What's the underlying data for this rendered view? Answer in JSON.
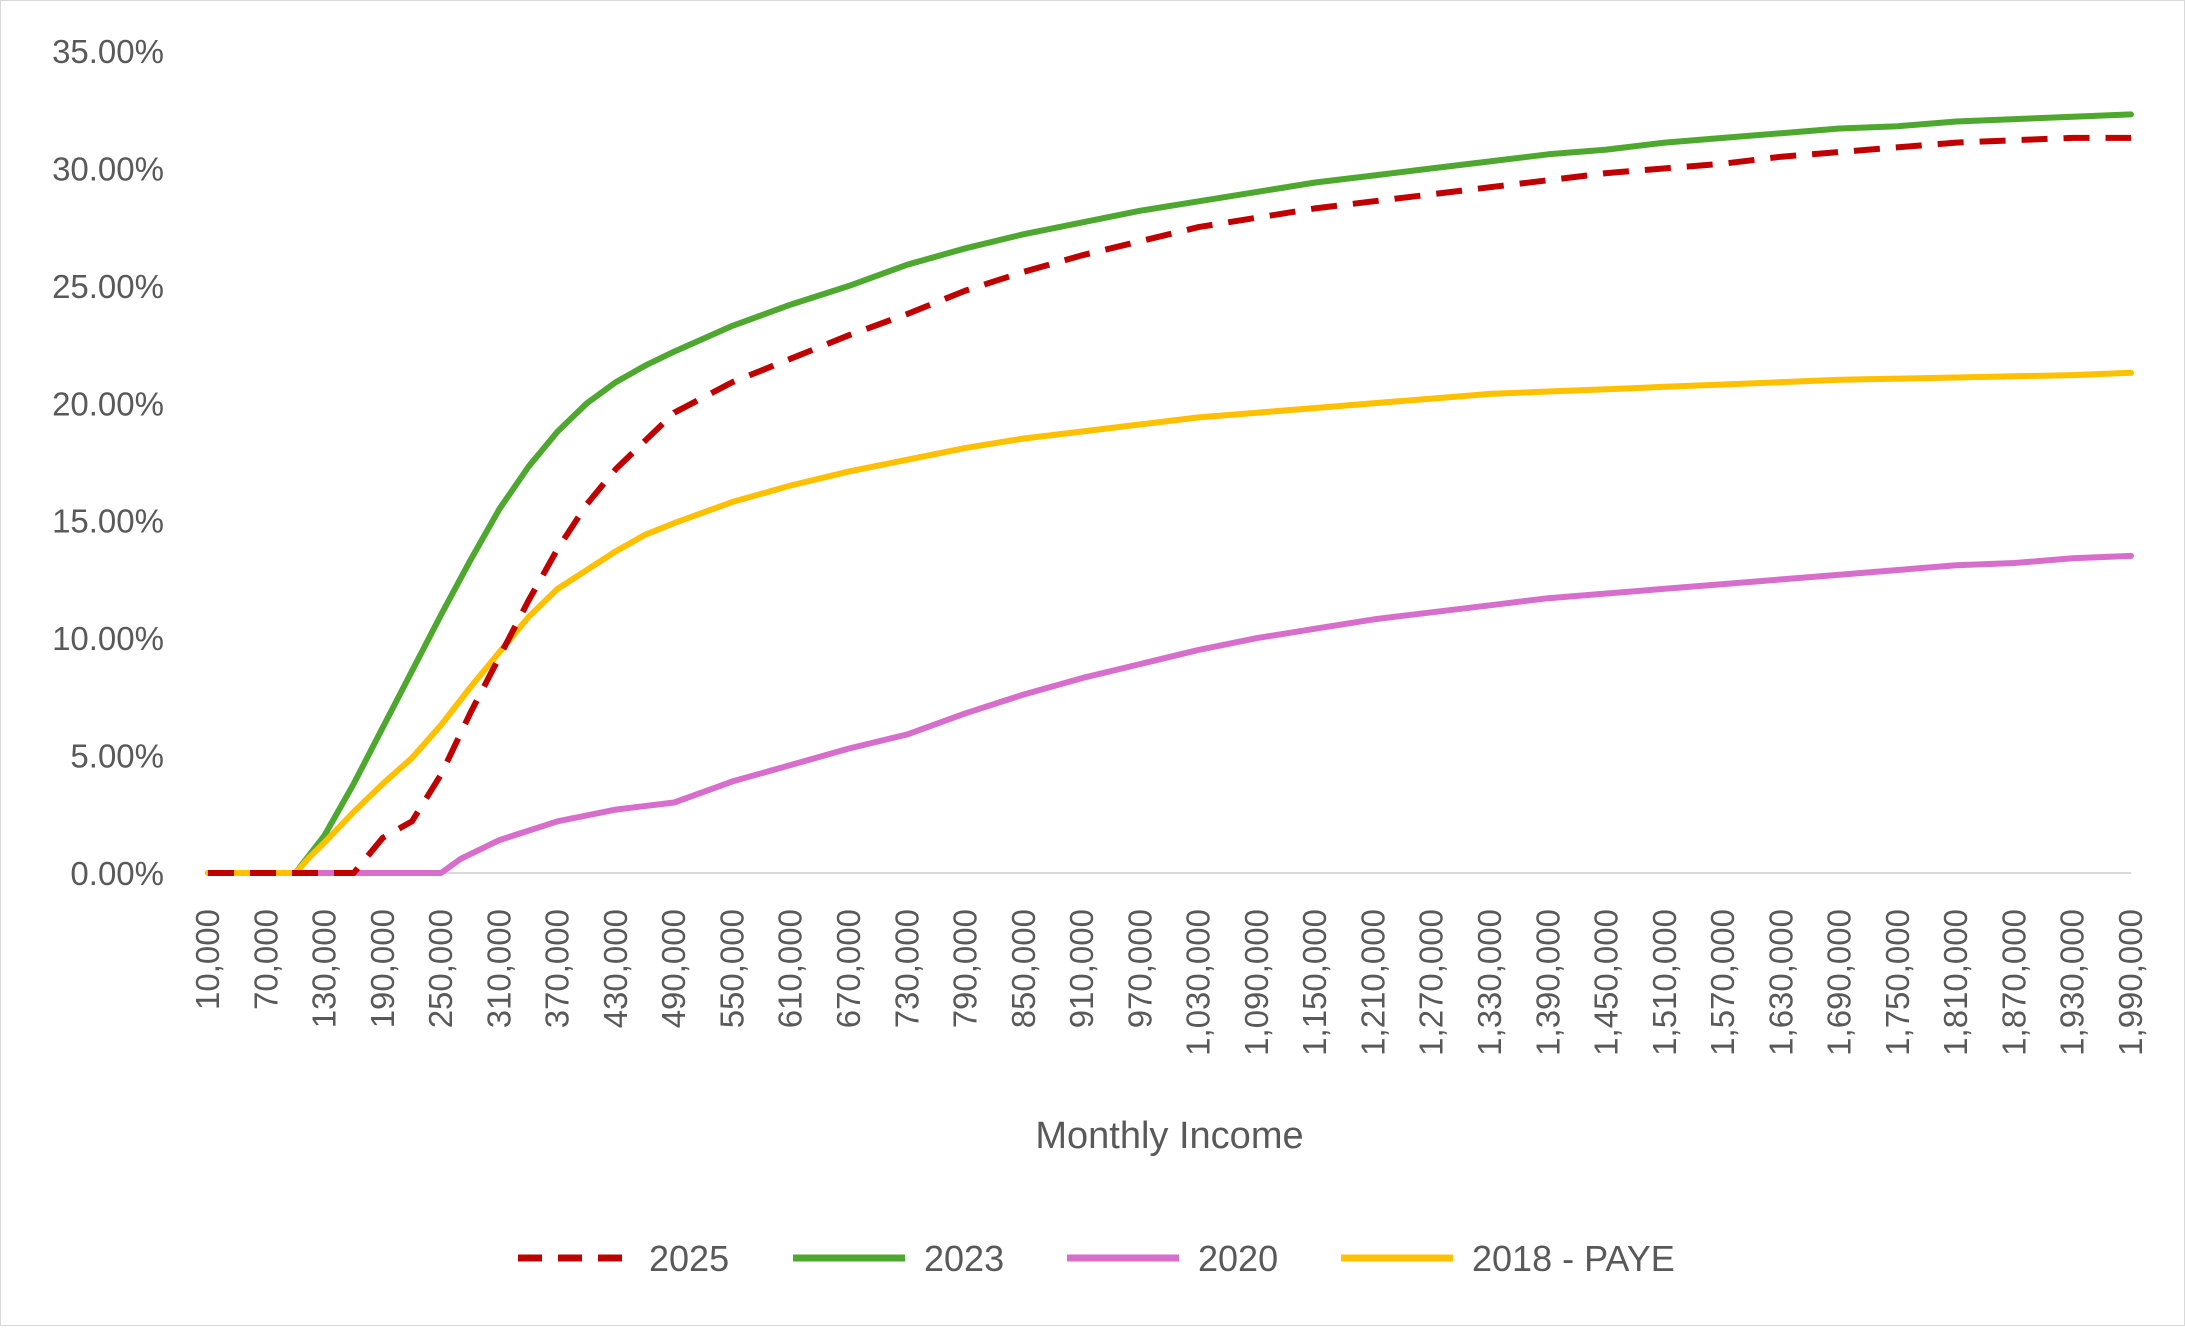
{
  "chart_data": {
    "type": "line",
    "title": "",
    "xlabel": "Monthly Income",
    "ylabel": "",
    "ylim": [
      0,
      35
    ],
    "yticks": [
      "0.00%",
      "5.00%",
      "10.00%",
      "15.00%",
      "20.00%",
      "25.00%",
      "30.00%",
      "35.00%"
    ],
    "ytick_values": [
      0,
      5,
      10,
      15,
      20,
      25,
      30,
      35
    ],
    "xlim": [
      10000,
      1990000
    ],
    "xticks": [
      "10,000",
      "70,000",
      "130,000",
      "190,000",
      "250,000",
      "310,000",
      "370,000",
      "430,000",
      "490,000",
      "550,000",
      "610,000",
      "670,000",
      "730,000",
      "790,000",
      "850,000",
      "910,000",
      "970,000",
      "1,030,000",
      "1,090,000",
      "1,150,000",
      "1,210,000",
      "1,270,000",
      "1,330,000",
      "1,390,000",
      "1,450,000",
      "1,510,000",
      "1,570,000",
      "1,630,000",
      "1,690,000",
      "1,750,000",
      "1,810,000",
      "1,870,000",
      "1,930,000",
      "1,990,000"
    ],
    "xtick_values": [
      10000,
      70000,
      130000,
      190000,
      250000,
      310000,
      370000,
      430000,
      490000,
      550000,
      610000,
      670000,
      730000,
      790000,
      850000,
      910000,
      970000,
      1030000,
      1090000,
      1150000,
      1210000,
      1270000,
      1330000,
      1390000,
      1450000,
      1510000,
      1570000,
      1630000,
      1690000,
      1750000,
      1810000,
      1870000,
      1930000,
      1990000
    ],
    "grid": false,
    "legend_position": "bottom",
    "series": [
      {
        "name": "2025",
        "color": "#C00000",
        "dash": true,
        "x": [
          10000,
          70000,
          100000,
          130000,
          160000,
          190000,
          220000,
          250000,
          280000,
          310000,
          340000,
          370000,
          400000,
          430000,
          460000,
          490000,
          550000,
          610000,
          670000,
          730000,
          790000,
          850000,
          910000,
          970000,
          1030000,
          1090000,
          1150000,
          1210000,
          1270000,
          1330000,
          1390000,
          1450000,
          1510000,
          1570000,
          1630000,
          1690000,
          1750000,
          1810000,
          1870000,
          1930000,
          1990000
        ],
        "y": [
          0,
          0,
          0,
          0,
          0,
          1.5,
          2.2,
          4.2,
          6.8,
          9.2,
          11.6,
          13.8,
          15.7,
          17.2,
          18.4,
          19.6,
          20.9,
          21.9,
          22.9,
          23.8,
          24.8,
          25.6,
          26.3,
          26.9,
          27.5,
          27.9,
          28.3,
          28.6,
          28.9,
          29.2,
          29.5,
          29.8,
          30.0,
          30.2,
          30.5,
          30.7,
          30.9,
          31.1,
          31.2,
          31.3,
          31.3
        ]
      },
      {
        "name": "2023",
        "color": "#4EA72E",
        "dash": false,
        "x": [
          10000,
          70000,
          100000,
          115000,
          130000,
          160000,
          190000,
          220000,
          250000,
          280000,
          310000,
          340000,
          370000,
          400000,
          430000,
          460000,
          490000,
          550000,
          610000,
          670000,
          730000,
          790000,
          850000,
          910000,
          970000,
          1030000,
          1090000,
          1150000,
          1210000,
          1270000,
          1330000,
          1390000,
          1450000,
          1510000,
          1570000,
          1630000,
          1690000,
          1750000,
          1810000,
          1870000,
          1930000,
          1990000
        ],
        "y": [
          0,
          0,
          0,
          0.8,
          1.6,
          3.8,
          6.2,
          8.6,
          11.0,
          13.3,
          15.5,
          17.3,
          18.8,
          20.0,
          20.9,
          21.6,
          22.2,
          23.3,
          24.2,
          25.0,
          25.9,
          26.6,
          27.2,
          27.7,
          28.2,
          28.6,
          29.0,
          29.4,
          29.7,
          30.0,
          30.3,
          30.6,
          30.8,
          31.1,
          31.3,
          31.5,
          31.7,
          31.8,
          32.0,
          32.1,
          32.2,
          32.3
        ]
      },
      {
        "name": "2020",
        "color": "#D86ECC",
        "dash": false,
        "x": [
          10000,
          70000,
          100000,
          130000,
          190000,
          250000,
          270000,
          310000,
          370000,
          430000,
          490000,
          550000,
          610000,
          670000,
          730000,
          790000,
          850000,
          910000,
          970000,
          1030000,
          1090000,
          1150000,
          1210000,
          1270000,
          1330000,
          1390000,
          1450000,
          1510000,
          1570000,
          1630000,
          1690000,
          1750000,
          1810000,
          1870000,
          1930000,
          1990000
        ],
        "y": [
          0,
          0,
          0,
          0,
          0,
          0,
          0.6,
          1.4,
          2.2,
          2.7,
          3.0,
          3.9,
          4.6,
          5.3,
          5.9,
          6.8,
          7.6,
          8.3,
          8.9,
          9.5,
          10.0,
          10.4,
          10.8,
          11.1,
          11.4,
          11.7,
          11.9,
          12.1,
          12.3,
          12.5,
          12.7,
          12.9,
          13.1,
          13.2,
          13.4,
          13.5
        ]
      },
      {
        "name": "2018 - PAYE",
        "color": "#FFC000",
        "dash": false,
        "x": [
          10000,
          70000,
          100000,
          115000,
          130000,
          160000,
          190000,
          220000,
          250000,
          280000,
          310000,
          340000,
          370000,
          400000,
          430000,
          460000,
          490000,
          550000,
          610000,
          670000,
          730000,
          790000,
          850000,
          910000,
          970000,
          1030000,
          1090000,
          1150000,
          1210000,
          1270000,
          1330000,
          1390000,
          1450000,
          1510000,
          1570000,
          1630000,
          1690000,
          1750000,
          1810000,
          1870000,
          1930000,
          1990000
        ],
        "y": [
          0,
          0,
          0,
          0.7,
          1.3,
          2.6,
          3.8,
          4.9,
          6.3,
          7.9,
          9.4,
          10.9,
          12.1,
          12.9,
          13.7,
          14.4,
          14.9,
          15.8,
          16.5,
          17.1,
          17.6,
          18.1,
          18.5,
          18.8,
          19.1,
          19.4,
          19.6,
          19.8,
          20.0,
          20.2,
          20.4,
          20.5,
          20.6,
          20.7,
          20.8,
          20.9,
          21.0,
          21.05,
          21.1,
          21.15,
          21.2,
          21.3
        ]
      }
    ]
  }
}
